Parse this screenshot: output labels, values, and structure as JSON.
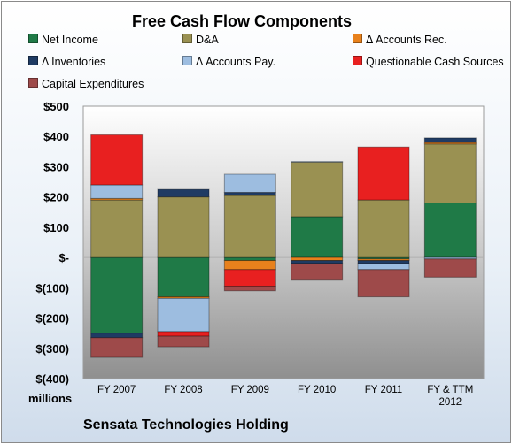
{
  "chart_data": {
    "type": "bar",
    "stacked": true,
    "title": "Free Cash Flow Components",
    "subtitle": "Sensata Technologies Holding",
    "units_label": "millions",
    "categories": [
      "FY 2007",
      "FY 2008",
      "FY 2009",
      "FY 2010",
      "FY 2011",
      "FY & TTM\n2012"
    ],
    "y_ticks": [
      "$500",
      "$400",
      "$300",
      "$200",
      "$100",
      "$-",
      "$(100)",
      "$(200)",
      "$(300)",
      "$(400)"
    ],
    "ylim": [
      -400,
      500
    ],
    "grid": false,
    "legend_position": "top",
    "series": [
      {
        "name": "Net Income",
        "color": "#1f7a47",
        "values": [
          -250,
          -130,
          -10,
          135,
          -5,
          180
        ]
      },
      {
        "name": "D&A",
        "color": "#9a9152",
        "values": [
          190,
          200,
          205,
          180,
          190,
          195
        ]
      },
      {
        "name": "Δ Accounts Rec.",
        "color": "#e8811c",
        "values": [
          5,
          -5,
          -30,
          -10,
          -5,
          5
        ]
      },
      {
        "name": "Δ Inventories",
        "color": "#1f3b63",
        "values": [
          -15,
          25,
          10,
          -10,
          -10,
          15
        ]
      },
      {
        "name": "Δ Accounts Pay.",
        "color": "#9dbde0",
        "values": [
          45,
          -110,
          60,
          2,
          -20,
          -5
        ]
      },
      {
        "name": "Questionable Cash Sources",
        "color": "#e82020",
        "values": [
          165,
          -15,
          -55,
          0,
          175,
          0
        ]
      },
      {
        "name": "Capital Expenditures",
        "color": "#9e4a4a",
        "values": [
          -65,
          -35,
          -15,
          -55,
          -90,
          -60
        ]
      }
    ]
  }
}
